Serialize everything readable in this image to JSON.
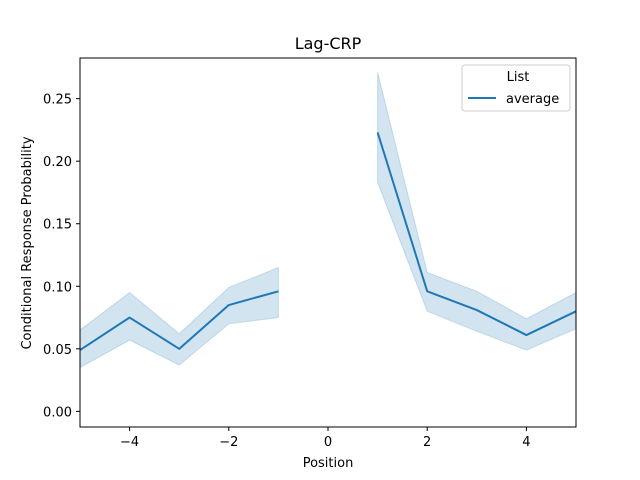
{
  "chart_data": {
    "type": "line",
    "title": "Lag-CRP",
    "xlabel": "Position",
    "ylabel": "Conditional Response Probability",
    "xlim": [
      -5,
      5
    ],
    "ylim": [
      -0.0125,
      0.2825
    ],
    "xticks": [
      -4,
      -2,
      0,
      2,
      4
    ],
    "xtick_labels": [
      "−4",
      "−2",
      "0",
      "2",
      "4"
    ],
    "yticks": [
      0.0,
      0.05,
      0.1,
      0.15,
      0.2,
      0.25
    ],
    "ytick_labels": [
      "0.00",
      "0.05",
      "0.10",
      "0.15",
      "0.20",
      "0.25"
    ],
    "grid": false,
    "legend": {
      "title": "List",
      "placement": "top-right"
    },
    "series": [
      {
        "name": "average",
        "color": "#1f77b4",
        "segments": [
          {
            "x": [
              -5,
              -4,
              -3,
              -2,
              -1
            ],
            "y": [
              0.049,
              0.075,
              0.05,
              0.085,
              0.096
            ],
            "ci_low": [
              0.035,
              0.057,
              0.037,
              0.07,
              0.075
            ],
            "ci_high": [
              0.065,
              0.095,
              0.062,
              0.099,
              0.115
            ]
          },
          {
            "x": [
              1,
              2,
              3,
              4,
              5
            ],
            "y": [
              0.223,
              0.096,
              0.081,
              0.061,
              0.08
            ],
            "ci_low": [
              0.183,
              0.08,
              0.064,
              0.049,
              0.066
            ],
            "ci_high": [
              0.271,
              0.111,
              0.096,
              0.074,
              0.095
            ]
          }
        ]
      }
    ]
  }
}
